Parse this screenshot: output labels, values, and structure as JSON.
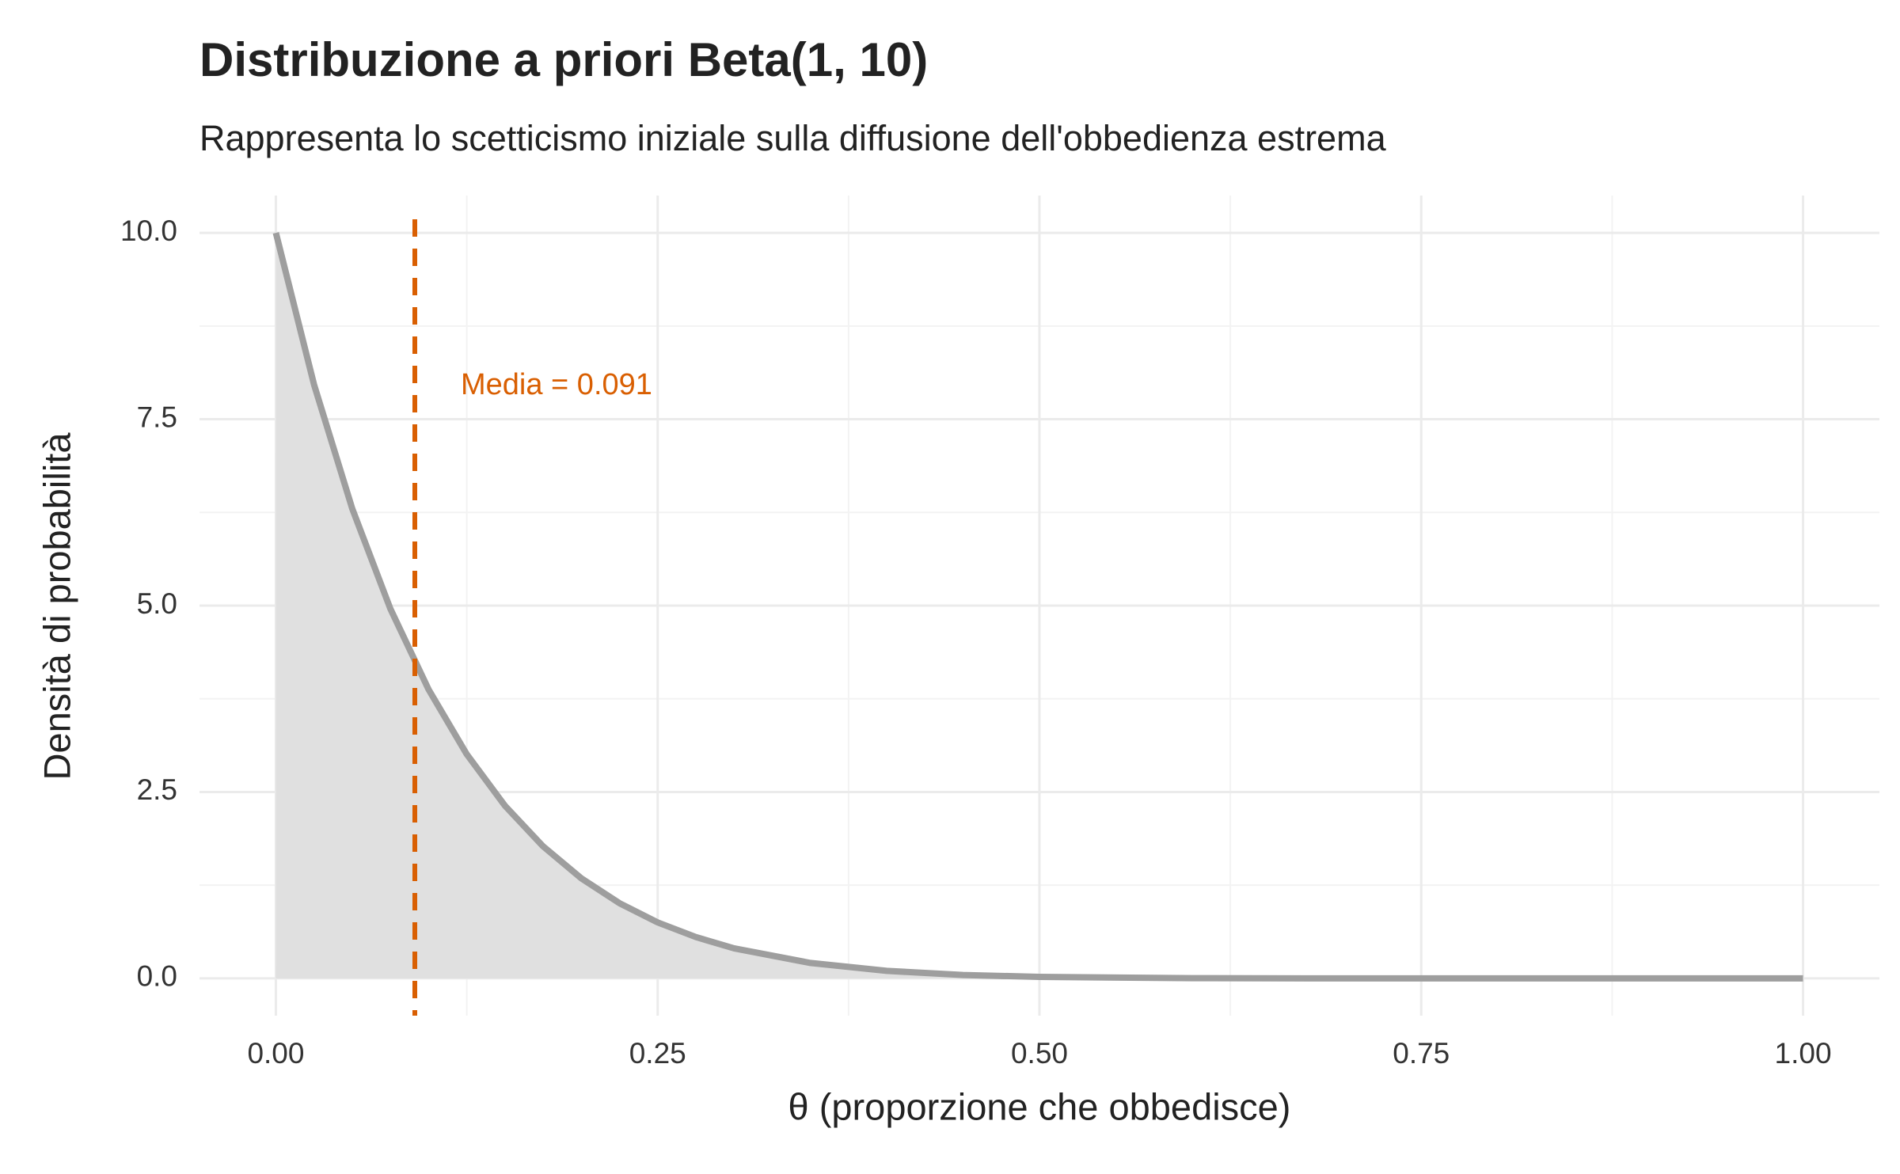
{
  "chart_data": {
    "type": "area-line",
    "title": "Distribuzione a priori Beta(1, 10)",
    "subtitle": "Rappresenta lo scetticismo iniziale sulla diffusione dell'obbedienza estrema",
    "x_label": "θ (proporzione che obbedisce)",
    "y_label": "Densità di probabilità",
    "x": [
      0,
      0.025,
      0.05,
      0.075,
      0.1,
      0.125,
      0.15,
      0.175,
      0.2,
      0.225,
      0.25,
      0.275,
      0.3,
      0.35,
      0.4,
      0.45,
      0.5,
      0.6,
      0.7,
      0.8,
      0.9,
      1.0
    ],
    "values": [
      10,
      7.963,
      6.302,
      4.958,
      3.874,
      3.006,
      2.316,
      1.771,
      1.342,
      1.009,
      0.751,
      0.554,
      0.404,
      0.207,
      0.101,
      0.046,
      0.02,
      0.003,
      0,
      0,
      0,
      0
    ],
    "color": "#9e9e9e",
    "fill": "#e0e0e0",
    "mean_line": {
      "value": 0.091,
      "label": "Media = 0.091",
      "color": "#d95f02"
    },
    "xlim": [
      -0.05,
      1.05
    ],
    "ylim": [
      -0.5,
      10.5
    ],
    "xticks": [
      {
        "value": 0,
        "label": "0.00"
      },
      0.25,
      {
        "value": 0.5,
        "label": "0.50"
      },
      0.75,
      {
        "value": 1,
        "label": "1.00"
      }
    ],
    "yticks": [
      {
        "value": 0,
        "label": "0.0"
      },
      2.5,
      {
        "value": 5,
        "label": "5.0"
      },
      7.5,
      {
        "value": 10,
        "label": "10.0"
      }
    ],
    "x_minor": [
      0.125,
      0.375,
      0.625,
      0.875
    ],
    "y_minor": [
      1.25,
      3.75,
      6.25,
      8.75
    ],
    "grid": true
  }
}
